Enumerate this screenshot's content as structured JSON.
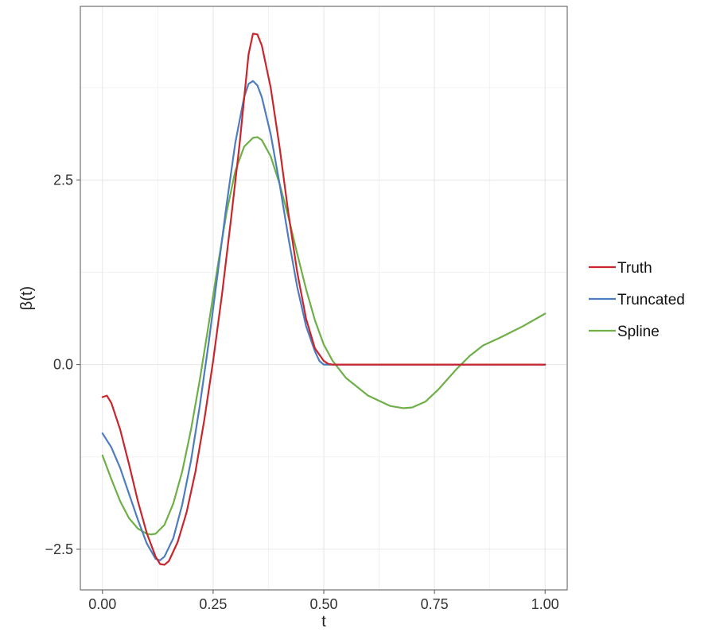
{
  "chart_data": {
    "type": "line",
    "title": "",
    "xlabel": "t",
    "ylabel": "β(t)",
    "xlim": [
      -0.05,
      1.05
    ],
    "ylim": [
      -3.05,
      4.85
    ],
    "x_ticks": [
      0.0,
      0.25,
      0.5,
      0.75,
      1.0
    ],
    "x_tick_labels": [
      "0.00",
      "0.25",
      "0.50",
      "0.75",
      "1.00"
    ],
    "y_ticks": [
      -2.5,
      0.0,
      2.5
    ],
    "y_tick_labels": [
      "−2.5",
      "0.0",
      "2.5"
    ],
    "grid": true,
    "legend_position": "right",
    "series": [
      {
        "name": "Truth",
        "color": "#C8262C",
        "points": [
          [
            0.0,
            -0.44
          ],
          [
            0.01,
            -0.42
          ],
          [
            0.02,
            -0.52
          ],
          [
            0.04,
            -0.88
          ],
          [
            0.06,
            -1.35
          ],
          [
            0.08,
            -1.85
          ],
          [
            0.1,
            -2.28
          ],
          [
            0.12,
            -2.6
          ],
          [
            0.13,
            -2.7
          ],
          [
            0.14,
            -2.71
          ],
          [
            0.15,
            -2.66
          ],
          [
            0.17,
            -2.4
          ],
          [
            0.19,
            -2.0
          ],
          [
            0.21,
            -1.45
          ],
          [
            0.23,
            -0.75
          ],
          [
            0.25,
            0.05
          ],
          [
            0.27,
            0.95
          ],
          [
            0.29,
            1.95
          ],
          [
            0.31,
            3.0
          ],
          [
            0.32,
            3.6
          ],
          [
            0.33,
            4.2
          ],
          [
            0.34,
            4.48
          ],
          [
            0.35,
            4.47
          ],
          [
            0.36,
            4.32
          ],
          [
            0.38,
            3.75
          ],
          [
            0.4,
            2.95
          ],
          [
            0.42,
            2.05
          ],
          [
            0.44,
            1.25
          ],
          [
            0.46,
            0.62
          ],
          [
            0.48,
            0.22
          ],
          [
            0.5,
            0.05
          ],
          [
            0.51,
            0.01
          ],
          [
            0.52,
            0.0
          ],
          [
            1.0,
            0.0
          ]
        ]
      },
      {
        "name": "Truncated",
        "color": "#4D7DBE",
        "points": [
          [
            0.0,
            -0.93
          ],
          [
            0.02,
            -1.12
          ],
          [
            0.04,
            -1.4
          ],
          [
            0.06,
            -1.75
          ],
          [
            0.08,
            -2.1
          ],
          [
            0.1,
            -2.42
          ],
          [
            0.12,
            -2.63
          ],
          [
            0.13,
            -2.65
          ],
          [
            0.14,
            -2.6
          ],
          [
            0.16,
            -2.35
          ],
          [
            0.18,
            -1.9
          ],
          [
            0.2,
            -1.3
          ],
          [
            0.22,
            -0.55
          ],
          [
            0.24,
            0.3
          ],
          [
            0.26,
            1.22
          ],
          [
            0.28,
            2.15
          ],
          [
            0.3,
            3.0
          ],
          [
            0.32,
            3.62
          ],
          [
            0.33,
            3.8
          ],
          [
            0.34,
            3.84
          ],
          [
            0.35,
            3.78
          ],
          [
            0.36,
            3.62
          ],
          [
            0.38,
            3.12
          ],
          [
            0.4,
            2.45
          ],
          [
            0.42,
            1.72
          ],
          [
            0.44,
            1.05
          ],
          [
            0.46,
            0.52
          ],
          [
            0.48,
            0.18
          ],
          [
            0.49,
            0.05
          ],
          [
            0.5,
            0.0
          ],
          [
            1.0,
            0.0
          ]
        ]
      },
      {
        "name": "Spline",
        "color": "#6EAF48",
        "points": [
          [
            0.0,
            -1.23
          ],
          [
            0.02,
            -1.55
          ],
          [
            0.04,
            -1.85
          ],
          [
            0.06,
            -2.08
          ],
          [
            0.08,
            -2.22
          ],
          [
            0.1,
            -2.29
          ],
          [
            0.11,
            -2.3
          ],
          [
            0.12,
            -2.29
          ],
          [
            0.14,
            -2.17
          ],
          [
            0.16,
            -1.88
          ],
          [
            0.18,
            -1.45
          ],
          [
            0.2,
            -0.88
          ],
          [
            0.22,
            -0.2
          ],
          [
            0.24,
            0.55
          ],
          [
            0.26,
            1.32
          ],
          [
            0.28,
            2.05
          ],
          [
            0.3,
            2.62
          ],
          [
            0.32,
            2.95
          ],
          [
            0.34,
            3.07
          ],
          [
            0.35,
            3.08
          ],
          [
            0.36,
            3.04
          ],
          [
            0.38,
            2.82
          ],
          [
            0.4,
            2.45
          ],
          [
            0.42,
            2.0
          ],
          [
            0.44,
            1.5
          ],
          [
            0.46,
            1.02
          ],
          [
            0.48,
            0.6
          ],
          [
            0.5,
            0.27
          ],
          [
            0.52,
            0.05
          ],
          [
            0.55,
            -0.18
          ],
          [
            0.6,
            -0.42
          ],
          [
            0.65,
            -0.56
          ],
          [
            0.68,
            -0.59
          ],
          [
            0.7,
            -0.58
          ],
          [
            0.73,
            -0.5
          ],
          [
            0.76,
            -0.33
          ],
          [
            0.8,
            -0.06
          ],
          [
            0.83,
            0.12
          ],
          [
            0.86,
            0.26
          ],
          [
            0.9,
            0.37
          ],
          [
            0.95,
            0.52
          ],
          [
            1.0,
            0.69
          ]
        ]
      }
    ]
  }
}
